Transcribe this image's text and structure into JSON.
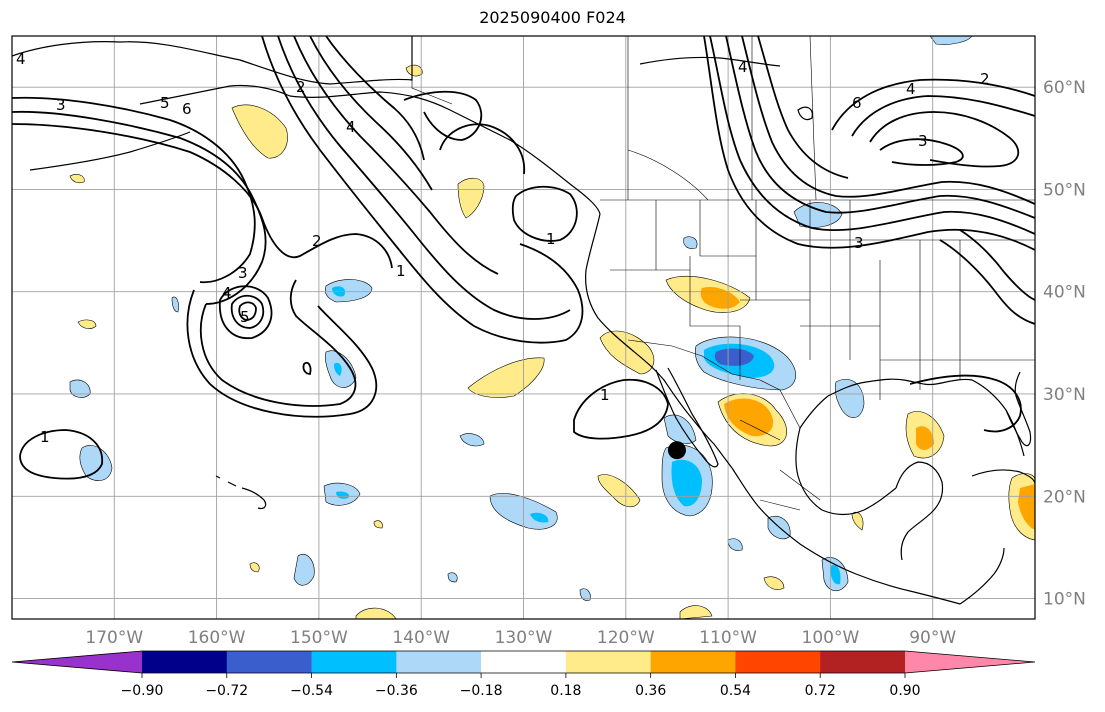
{
  "title": "2025090400 F024",
  "map": {
    "lon_range": [
      -180,
      -80
    ],
    "lat_range": [
      8,
      65
    ],
    "lon_ticks": [
      {
        "value": -170,
        "label": "170°W"
      },
      {
        "value": -160,
        "label": "160°W"
      },
      {
        "value": -150,
        "label": "150°W"
      },
      {
        "value": -140,
        "label": "140°W"
      },
      {
        "value": -130,
        "label": "130°W"
      },
      {
        "value": -120,
        "label": "120°W"
      },
      {
        "value": -110,
        "label": "110°W"
      },
      {
        "value": -100,
        "label": "100°W"
      },
      {
        "value": -90,
        "label": "90°W"
      }
    ],
    "lat_ticks": [
      {
        "value": 60,
        "label": "60°N"
      },
      {
        "value": 50,
        "label": "50°N"
      },
      {
        "value": 40,
        "label": "40°N"
      },
      {
        "value": 30,
        "label": "30°N"
      },
      {
        "value": 20,
        "label": "20°N"
      },
      {
        "value": 10,
        "label": "10°N"
      }
    ],
    "marker": {
      "lon": -115,
      "lat": 24.5
    },
    "contour_labels": [
      "1",
      "2",
      "3",
      "4",
      "5",
      "6"
    ]
  },
  "colorbar": {
    "levels": [
      -0.9,
      -0.72,
      -0.54,
      -0.36,
      -0.18,
      0.18,
      0.36,
      0.54,
      0.72,
      0.9
    ],
    "labels": [
      "−0.90",
      "−0.72",
      "−0.54",
      "−0.36",
      "−0.18",
      "0.18",
      "0.36",
      "0.54",
      "0.72",
      "0.90"
    ],
    "colors": [
      "#9932cc",
      "#00008b",
      "#3a5fcd",
      "#00bfff",
      "#add8f7",
      "#ffffff",
      "#ffeb8a",
      "#ffa500",
      "#ff4500",
      "#b22222",
      "#ff88aa"
    ]
  }
}
